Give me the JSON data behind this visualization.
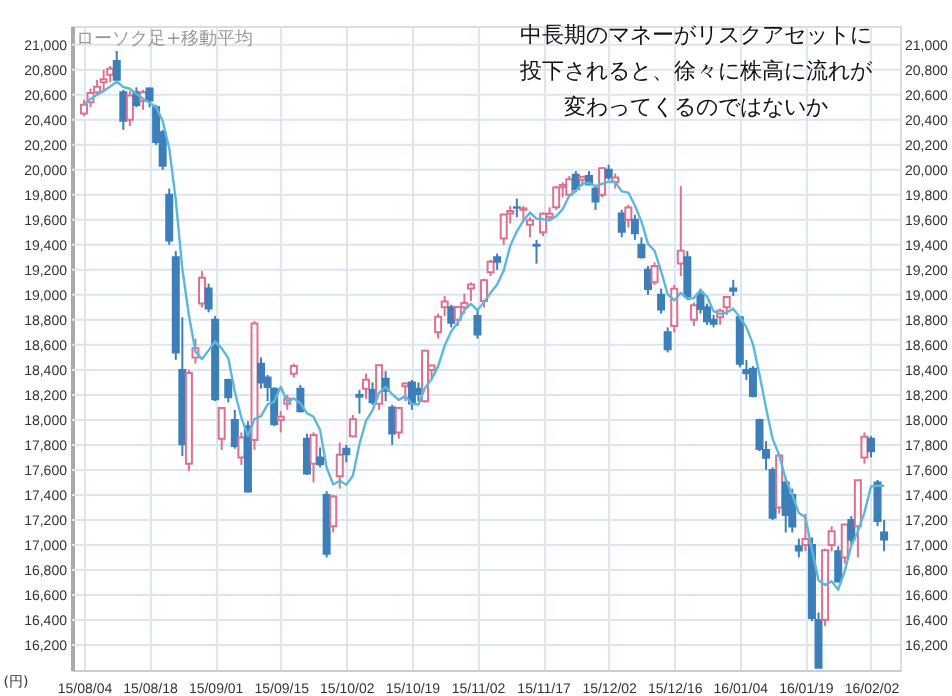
{
  "chart_data": {
    "type": "candlestick",
    "title": "ローソク足+移動平均",
    "ylabel": "(円)",
    "annotations": [
      "中長期のマネーがリスクアセットに投下されると、徐々に株高に流れが変わってくるのではないか"
    ],
    "categories": [
      "15/08/04",
      null,
      null,
      null,
      null,
      null,
      null,
      null,
      null,
      null,
      "15/08/18",
      null,
      null,
      null,
      null,
      null,
      null,
      null,
      null,
      null,
      "15/09/01",
      null,
      null,
      null,
      null,
      null,
      null,
      null,
      null,
      null,
      "15/09/15",
      null,
      null,
      null,
      null,
      null,
      null,
      null,
      null,
      null,
      "15/10/02",
      null,
      null,
      null,
      null,
      null,
      null,
      null,
      null,
      null,
      "15/10/19",
      null,
      null,
      null,
      null,
      null,
      null,
      null,
      null,
      null,
      "15/11/02",
      null,
      null,
      null,
      null,
      null,
      null,
      null,
      null,
      null,
      "15/11/17",
      null,
      null,
      null,
      null,
      null,
      null,
      null,
      null,
      null,
      "15/12/02",
      null,
      null,
      null,
      null,
      null,
      null,
      null,
      null,
      null,
      "15/12/16",
      null,
      null,
      null,
      null,
      null,
      null,
      null,
      null,
      null,
      "16/01/04",
      null,
      null,
      null,
      null,
      null,
      null,
      null,
      null,
      null,
      "16/01/19",
      null,
      null,
      null,
      null,
      null,
      null,
      null,
      null,
      null,
      "16/02/02",
      null,
      null
    ],
    "ohlc": [
      [
        20450,
        20560,
        20430,
        20520
      ],
      [
        20540,
        20650,
        20500,
        20614
      ],
      [
        20620,
        20720,
        20600,
        20665
      ],
      [
        20700,
        20800,
        20620,
        20724
      ],
      [
        20760,
        20830,
        20700,
        20808
      ],
      [
        20870,
        20950,
        20700,
        20720
      ],
      [
        20620,
        20640,
        20320,
        20392
      ],
      [
        20400,
        20630,
        20350,
        20595
      ],
      [
        20620,
        20660,
        20500,
        20519
      ],
      [
        20550,
        20640,
        20480,
        20620
      ],
      [
        20650,
        20660,
        20500,
        20554
      ],
      [
        20500,
        20520,
        20200,
        20222
      ],
      [
        20300,
        20320,
        20000,
        20033
      ],
      [
        19800,
        19850,
        19400,
        19435
      ],
      [
        19300,
        19350,
        18480,
        18540
      ],
      [
        18400,
        18820,
        17710,
        17806
      ],
      [
        17650,
        18400,
        17590,
        18376
      ],
      [
        18500,
        18650,
        18450,
        18574
      ],
      [
        18930,
        19190,
        18900,
        19136
      ],
      [
        19050,
        19090,
        18860,
        18890
      ],
      [
        18800,
        18830,
        18150,
        18165
      ],
      [
        17850,
        18100,
        17760,
        18095
      ],
      [
        18320,
        18330,
        18140,
        18182
      ],
      [
        18000,
        18080,
        17770,
        17792
      ],
      [
        17700,
        17900,
        17640,
        17860
      ],
      [
        17950,
        17990,
        17420,
        17427
      ],
      [
        17840,
        18790,
        17760,
        18770
      ],
      [
        18450,
        18500,
        18250,
        18299
      ],
      [
        18340,
        18360,
        18150,
        18264
      ],
      [
        18250,
        18260,
        17950,
        17965
      ],
      [
        18000,
        18070,
        17900,
        18026
      ],
      [
        18130,
        18200,
        18080,
        18171
      ],
      [
        18370,
        18450,
        18340,
        18432
      ],
      [
        18250,
        18280,
        18060,
        18070
      ],
      [
        17850,
        17890,
        17560,
        17571
      ],
      [
        17650,
        17900,
        17500,
        17880
      ],
      [
        17700,
        17780,
        17620,
        17645
      ],
      [
        17400,
        17430,
        16900,
        16930
      ],
      [
        17150,
        17400,
        17100,
        17388
      ],
      [
        17550,
        17820,
        17450,
        17722
      ],
      [
        17770,
        17800,
        17660,
        17725
      ],
      [
        17870,
        18040,
        17860,
        18005
      ],
      [
        18200,
        18240,
        18050,
        18186
      ],
      [
        18250,
        18370,
        18170,
        18322
      ],
      [
        18240,
        18300,
        18120,
        18141
      ],
      [
        18130,
        18440,
        18080,
        18438
      ],
      [
        18330,
        18390,
        18150,
        18234
      ],
      [
        18100,
        18120,
        17800,
        17891
      ],
      [
        17900,
        18100,
        17850,
        18096
      ],
      [
        18270,
        18300,
        18150,
        18291
      ],
      [
        18300,
        18320,
        18080,
        18131
      ],
      [
        18250,
        18300,
        18150,
        18207
      ],
      [
        18150,
        18560,
        18140,
        18554
      ],
      [
        18400,
        18440,
        18330,
        18435
      ],
      [
        18700,
        18850,
        18650,
        18825
      ],
      [
        18900,
        18990,
        18830,
        18947
      ],
      [
        18900,
        18920,
        18740,
        18777
      ],
      [
        18800,
        18910,
        18750,
        18903
      ],
      [
        18900,
        19010,
        18850,
        18935
      ],
      [
        19050,
        19100,
        18950,
        19083
      ],
      [
        18830,
        18890,
        18650,
        18683
      ],
      [
        18950,
        19130,
        18900,
        19116
      ],
      [
        19180,
        19280,
        19150,
        19265
      ],
      [
        19300,
        19330,
        19200,
        19265
      ],
      [
        19450,
        19650,
        19400,
        19642
      ],
      [
        19650,
        19710,
        19570,
        19671
      ],
      [
        19700,
        19770,
        19620,
        19697
      ],
      [
        19680,
        19710,
        19580,
        19691
      ],
      [
        19560,
        19620,
        19460,
        19596
      ],
      [
        19400,
        19440,
        19250,
        19393
      ],
      [
        19500,
        19660,
        19470,
        19649
      ],
      [
        19620,
        19700,
        19590,
        19649
      ],
      [
        19700,
        19870,
        19680,
        19859
      ],
      [
        19860,
        19900,
        19780,
        19879
      ],
      [
        19800,
        19950,
        19780,
        19924
      ],
      [
        19960,
        19990,
        19820,
        19847
      ],
      [
        19920,
        19950,
        19870,
        19944
      ],
      [
        19950,
        19990,
        19880,
        19883
      ],
      [
        19850,
        19870,
        19680,
        19747
      ],
      [
        19800,
        20020,
        19780,
        20012
      ],
      [
        20000,
        20040,
        19920,
        19938
      ],
      [
        19900,
        19970,
        19850,
        19939
      ],
      [
        19650,
        19680,
        19460,
        19504
      ],
      [
        19600,
        19720,
        19540,
        19698
      ],
      [
        19600,
        19640,
        19440,
        19492
      ],
      [
        19400,
        19460,
        19290,
        19301
      ],
      [
        19200,
        19230,
        19000,
        19046
      ],
      [
        19100,
        19260,
        19080,
        19230
      ],
      [
        19000,
        19050,
        18850,
        18883
      ],
      [
        18700,
        18740,
        18540,
        18565
      ],
      [
        18750,
        19080,
        18700,
        19049
      ],
      [
        19250,
        19870,
        19150,
        19353
      ],
      [
        19300,
        19350,
        18960,
        18986
      ],
      [
        18800,
        18940,
        18750,
        18916
      ],
      [
        19000,
        19050,
        18850,
        18886
      ],
      [
        18900,
        18930,
        18760,
        18789
      ],
      [
        18800,
        18840,
        18740,
        18769
      ],
      [
        18820,
        18890,
        18760,
        18873
      ],
      [
        18900,
        18990,
        18840,
        18982
      ],
      [
        19050,
        19120,
        18990,
        19033
      ],
      [
        18820,
        18830,
        18420,
        18450
      ],
      [
        18400,
        18480,
        18320,
        18374
      ],
      [
        18410,
        18430,
        18180,
        18191
      ],
      [
        18000,
        18010,
        17750,
        17767
      ],
      [
        17760,
        17830,
        17600,
        17697
      ],
      [
        17600,
        17620,
        17200,
        17218
      ],
      [
        17300,
        17730,
        17250,
        17715
      ],
      [
        17500,
        17540,
        17100,
        17240
      ],
      [
        17400,
        17450,
        17100,
        17147
      ],
      [
        16990,
        17050,
        16900,
        16955
      ],
      [
        17000,
        17250,
        16950,
        17048
      ],
      [
        17000,
        17060,
        16390,
        16416
      ],
      [
        16400,
        16460,
        16017,
        16017
      ],
      [
        16400,
        16970,
        16350,
        16958
      ],
      [
        17000,
        17150,
        16950,
        17110
      ],
      [
        16950,
        16990,
        16700,
        16708
      ],
      [
        16900,
        17170,
        16850,
        17163
      ],
      [
        17200,
        17230,
        17000,
        17041
      ],
      [
        17150,
        17520,
        16900,
        17518
      ],
      [
        17700,
        17900,
        17650,
        17865
      ],
      [
        17850,
        17870,
        17700,
        17750
      ],
      [
        17500,
        17520,
        17150,
        17191
      ],
      [
        17100,
        17200,
        16950,
        17044
      ]
    ],
    "colors": [
      "#e0708e",
      "#e0708e",
      "#e0708e",
      "#e0708e",
      "#e0708e",
      "#3d7fb8",
      "#3d7fb8",
      "#e0708e",
      "#3d7fb8",
      "#e0708e",
      "#3d7fb8",
      "#3d7fb8",
      "#3d7fb8",
      "#3d7fb8",
      "#3d7fb8",
      "#3d7fb8",
      "#e0708e",
      "#e0708e",
      "#e0708e",
      "#3d7fb8",
      "#3d7fb8",
      "#e0708e",
      "#3d7fb8",
      "#3d7fb8",
      "#e0708e",
      "#3d7fb8",
      "#e0708e",
      "#3d7fb8",
      "#3d7fb8",
      "#3d7fb8",
      "#e0708e",
      "#e0708e",
      "#e0708e",
      "#3d7fb8",
      "#3d7fb8",
      "#e0708e",
      "#3d7fb8",
      "#3d7fb8",
      "#e0708e",
      "#e0708e",
      "#3d7fb8",
      "#e0708e",
      "#3d7fb8",
      "#e0708e",
      "#3d7fb8",
      "#e0708e",
      "#3d7fb8",
      "#3d7fb8",
      "#e0708e",
      "#e0708e",
      "#3d7fb8",
      "#3d7fb8",
      "#e0708e",
      "#e0708e",
      "#e0708e",
      "#e0708e",
      "#3d7fb8",
      "#e0708e",
      "#e0708e",
      "#e0708e",
      "#3d7fb8",
      "#e0708e",
      "#e0708e",
      "#3d7fb8",
      "#e0708e",
      "#e0708e",
      "#3d7fb8",
      "#e0708e",
      "#e0708e",
      "#3d7fb8",
      "#e0708e",
      "#e0708e",
      "#e0708e",
      "#e0708e",
      "#e0708e",
      "#3d7fb8",
      "#e0708e",
      "#3d7fb8",
      "#3d7fb8",
      "#e0708e",
      "#3d7fb8",
      "#e0708e",
      "#3d7fb8",
      "#e0708e",
      "#3d7fb8",
      "#3d7fb8",
      "#3d7fb8",
      "#e0708e",
      "#3d7fb8",
      "#3d7fb8",
      "#e0708e",
      "#e0708e",
      "#3d7fb8",
      "#e0708e",
      "#3d7fb8",
      "#3d7fb8",
      "#3d7fb8",
      "#e0708e",
      "#e0708e",
      "#3d7fb8",
      "#3d7fb8",
      "#3d7fb8",
      "#3d7fb8",
      "#3d7fb8",
      "#3d7fb8",
      "#3d7fb8",
      "#e0708e",
      "#3d7fb8",
      "#3d7fb8",
      "#3d7fb8",
      "#e0708e",
      "#3d7fb8",
      "#3d7fb8",
      "#e0708e",
      "#e0708e",
      "#3d7fb8",
      "#e0708e",
      "#3d7fb8",
      "#e0708e",
      "#e0708e",
      "#3d7fb8",
      "#3d7fb8",
      "#3d7fb8"
    ],
    "series": [
      {
        "type": "line",
        "color": "#5bb8dc",
        "values": [
          20520,
          20567,
          20600,
          20631,
          20666,
          20706,
          20662,
          20648,
          20607,
          20569,
          20536,
          20502,
          20390,
          20173,
          19757,
          19207,
          18838,
          18546,
          18486,
          18556,
          18628,
          18572,
          18494,
          18225,
          18019,
          17871,
          18006,
          18030,
          18124,
          18145,
          18265,
          18145,
          18172,
          18133,
          18054,
          18025,
          17920,
          17619,
          17483,
          17513,
          17482,
          17554,
          17805,
          17992,
          18076,
          18218,
          18264,
          18205,
          18160,
          18190,
          18129,
          18123,
          18256,
          18324,
          18430,
          18594,
          18708,
          18777,
          18877,
          18929,
          18876,
          18944,
          19016,
          19082,
          19194,
          19392,
          19508,
          19593,
          19659,
          19610,
          19605,
          19596,
          19629,
          19686,
          19792,
          19832,
          19891,
          19895,
          19869,
          19887,
          19905,
          19904,
          19828,
          19818,
          19714,
          19587,
          19408,
          19353,
          19190,
          19005,
          18955,
          19016,
          18967,
          18974,
          19038,
          18986,
          18869,
          18847,
          18860,
          18889,
          18821,
          18742,
          18606,
          18363,
          18096,
          17849,
          17718,
          17527,
          17403,
          17255,
          17221,
          16961,
          16717,
          16679,
          16710,
          16642,
          16791,
          16996,
          17108,
          17259,
          17467,
          17473,
          17474
        ]
      }
    ],
    "ylim": [
      16000,
      21150
    ],
    "yticks": [
      {
        "value": 16200,
        "label": "16,200"
      },
      {
        "value": 16400,
        "label": "16,400"
      },
      {
        "value": 16600,
        "label": "16,600"
      },
      {
        "value": 16800,
        "label": "16,800"
      },
      {
        "value": 17000,
        "label": "17,000"
      },
      {
        "value": 17200,
        "label": "17,200"
      },
      {
        "value": 17400,
        "label": "17,400"
      },
      {
        "value": 17600,
        "label": "17,600"
      },
      {
        "value": 17800,
        "label": "17,800"
      },
      {
        "value": 18000,
        "label": "18,000"
      },
      {
        "value": 18200,
        "label": "18,200"
      },
      {
        "value": 18400,
        "label": "18,400"
      },
      {
        "value": 18600,
        "label": "18,600"
      },
      {
        "value": 18800,
        "label": "18,800"
      },
      {
        "value": 19000,
        "label": "19,000"
      },
      {
        "value": 19200,
        "label": "19,200"
      },
      {
        "value": 19400,
        "label": "19,400"
      },
      {
        "value": 19600,
        "label": "19,600"
      },
      {
        "value": 19800,
        "label": "19,800"
      },
      {
        "value": 20000,
        "label": "20,000"
      },
      {
        "value": 20200,
        "label": "20,200"
      },
      {
        "value": 20400,
        "label": "20,400"
      },
      {
        "value": 20600,
        "label": "20,600"
      },
      {
        "value": 20800,
        "label": "20,800"
      },
      {
        "value": 21000,
        "label": "21,000"
      }
    ],
    "y2lim": [
      16000,
      21150
    ],
    "y2ticks": [
      {
        "value": 16200,
        "label": "16,200"
      },
      {
        "value": 16400,
        "label": "16,400"
      },
      {
        "value": 16600,
        "label": "16,600"
      },
      {
        "value": 16800,
        "label": "16,800"
      },
      {
        "value": 17000,
        "label": "17,000"
      },
      {
        "value": 17200,
        "label": "17,200"
      },
      {
        "value": 17400,
        "label": "17,400"
      },
      {
        "value": 17600,
        "label": "17,600"
      },
      {
        "value": 17800,
        "label": "17,800"
      },
      {
        "value": 18000,
        "label": "18,000"
      },
      {
        "value": 18200,
        "label": "18,200"
      },
      {
        "value": 18400,
        "label": "18,400"
      },
      {
        "value": 18600,
        "label": "18,600"
      },
      {
        "value": 18800,
        "label": "18,800"
      },
      {
        "value": 19000,
        "label": "19,000"
      },
      {
        "value": 19200,
        "label": "19,200"
      },
      {
        "value": 19400,
        "label": "19,400"
      },
      {
        "value": 19600,
        "label": "19,600"
      },
      {
        "value": 19800,
        "label": "19,800"
      },
      {
        "value": 20000,
        "label": "20,000"
      },
      {
        "value": 20200,
        "label": "20,200"
      },
      {
        "value": 20400,
        "label": "20,400"
      },
      {
        "value": 20600,
        "label": "20,600"
      },
      {
        "value": 20800,
        "label": "20,800"
      },
      {
        "value": 21000,
        "label": "21,000"
      }
    ],
    "grid": true
  }
}
